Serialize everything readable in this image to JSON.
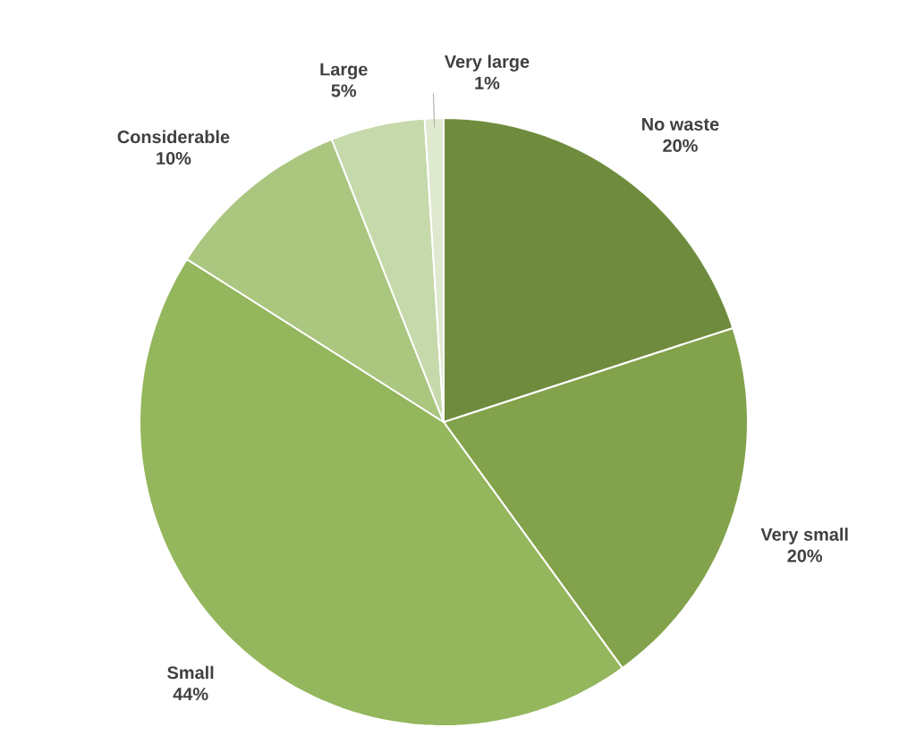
{
  "chart_data": {
    "type": "pie",
    "categories": [
      "No waste",
      "Very small",
      "Small",
      "Considerable",
      "Large",
      "Very large"
    ],
    "values": [
      20,
      20,
      44,
      10,
      5,
      1
    ],
    "value_labels": [
      "20%",
      "20%",
      "44%",
      "10%",
      "5%",
      "1%"
    ],
    "colors": [
      "#6f8c3e",
      "#82a24b",
      "#94b65c",
      "#aac67f",
      "#c6d9aa",
      "#dfe9cf"
    ]
  }
}
